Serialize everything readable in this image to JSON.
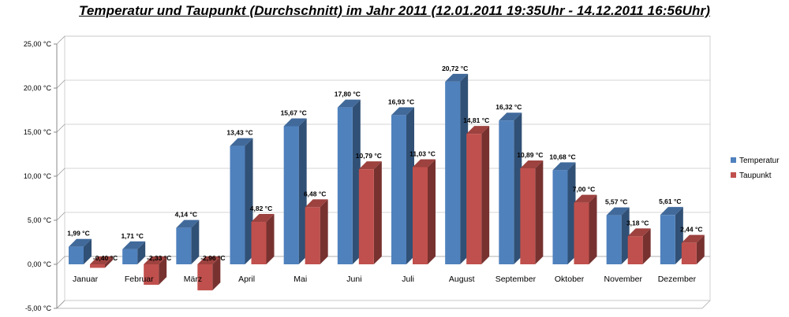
{
  "chart_data": {
    "type": "bar",
    "title": "Temperatur und Taupunkt (Durchschnitt) im Jahr 2011   (12.01.2011 19:35Uhr - 14.12.2011 16:56Uhr)",
    "categories": [
      "Januar",
      "Februar",
      "März",
      "April",
      "Mai",
      "Juni",
      "Juli",
      "August",
      "September",
      "Oktober",
      "November",
      "Dezember"
    ],
    "series": [
      {
        "name": "Temperatur",
        "color": "#4f81bd",
        "values": [
          1.99,
          1.71,
          4.14,
          13.43,
          15.67,
          17.8,
          16.93,
          20.72,
          16.32,
          10.68,
          5.57,
          5.61
        ],
        "labels": [
          "1,99 °C",
          "1,71 °C",
          "4,14 °C",
          "13,43 °C",
          "15,67 °C",
          "17,80 °C",
          "16,93 °C",
          "20,72 °C",
          "16,32 °C",
          "10,68 °C",
          "5,57 °C",
          "5,61 °C"
        ]
      },
      {
        "name": "Taupunkt",
        "color": "#c0504d",
        "values": [
          -0.4,
          -2.33,
          -2.96,
          4.82,
          6.48,
          10.79,
          11.03,
          14.81,
          10.89,
          7.0,
          3.18,
          2.44
        ],
        "labels": [
          "-0,40 °C",
          "-2,33 °C",
          "-2,96 °C",
          "4,82 °C",
          "6,48 °C",
          "10,79 °C",
          "11,03 °C",
          "14,81 °C",
          "10,89 °C",
          "7,00 °C",
          "3,18 °C",
          "2,44 °C"
        ]
      }
    ],
    "ylim": [
      -5,
      25
    ],
    "yticks": [
      -5,
      0,
      5,
      10,
      15,
      20,
      25
    ],
    "ytick_labels": [
      "-5,00 °C",
      "0,00 °C",
      "5,00 °C",
      "10,00 °C",
      "15,00 °C",
      "20,00 °C",
      "25,00 °C"
    ],
    "grid": true,
    "legend": "right",
    "xlabel": "",
    "ylabel": ""
  }
}
